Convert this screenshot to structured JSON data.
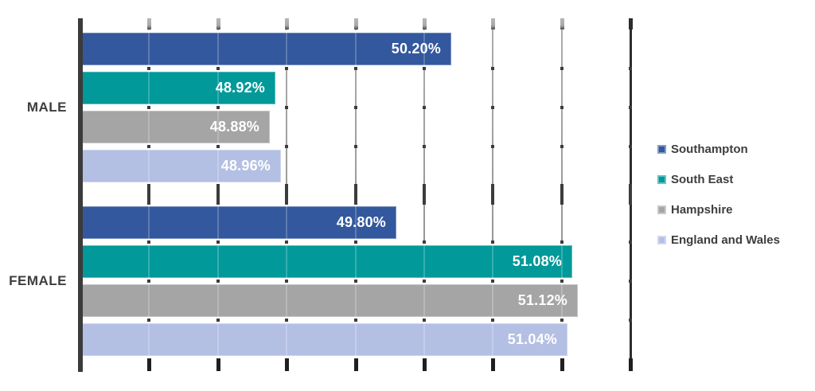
{
  "chart_data": {
    "type": "bar",
    "orientation": "horizontal",
    "title": "",
    "categories": [
      "MALE",
      "FEMALE"
    ],
    "series": [
      {
        "name": "Southampton",
        "color": "#33589D",
        "values": [
          50.2,
          49.8
        ],
        "labels": [
          "50.20%",
          "49.80%"
        ]
      },
      {
        "name": "South East",
        "color": "#019999",
        "values": [
          48.92,
          51.08
        ],
        "labels": [
          "48.92%",
          "51.08%"
        ]
      },
      {
        "name": "Hampshire",
        "color": "#A5A5A5",
        "values": [
          48.88,
          51.12
        ],
        "labels": [
          "48.88%",
          "51.12%"
        ]
      },
      {
        "name": "England and Wales",
        "color": "#B4BFE4",
        "values": [
          48.96,
          51.04
        ],
        "labels": [
          "48.96%",
          "51.04%"
        ]
      }
    ],
    "xlim": [
      47.5,
      51.5
    ],
    "gridline_step": 0.5,
    "grid": true,
    "legend_position": "right",
    "value_label_color": "#FFFFFF",
    "category_label_color": "#3E3E3E",
    "legend_text_color": "#3E3E3E",
    "axis_color": "#3B3B3B",
    "gridline_color": "#9B9B9B",
    "background": "#FFFFFF"
  }
}
